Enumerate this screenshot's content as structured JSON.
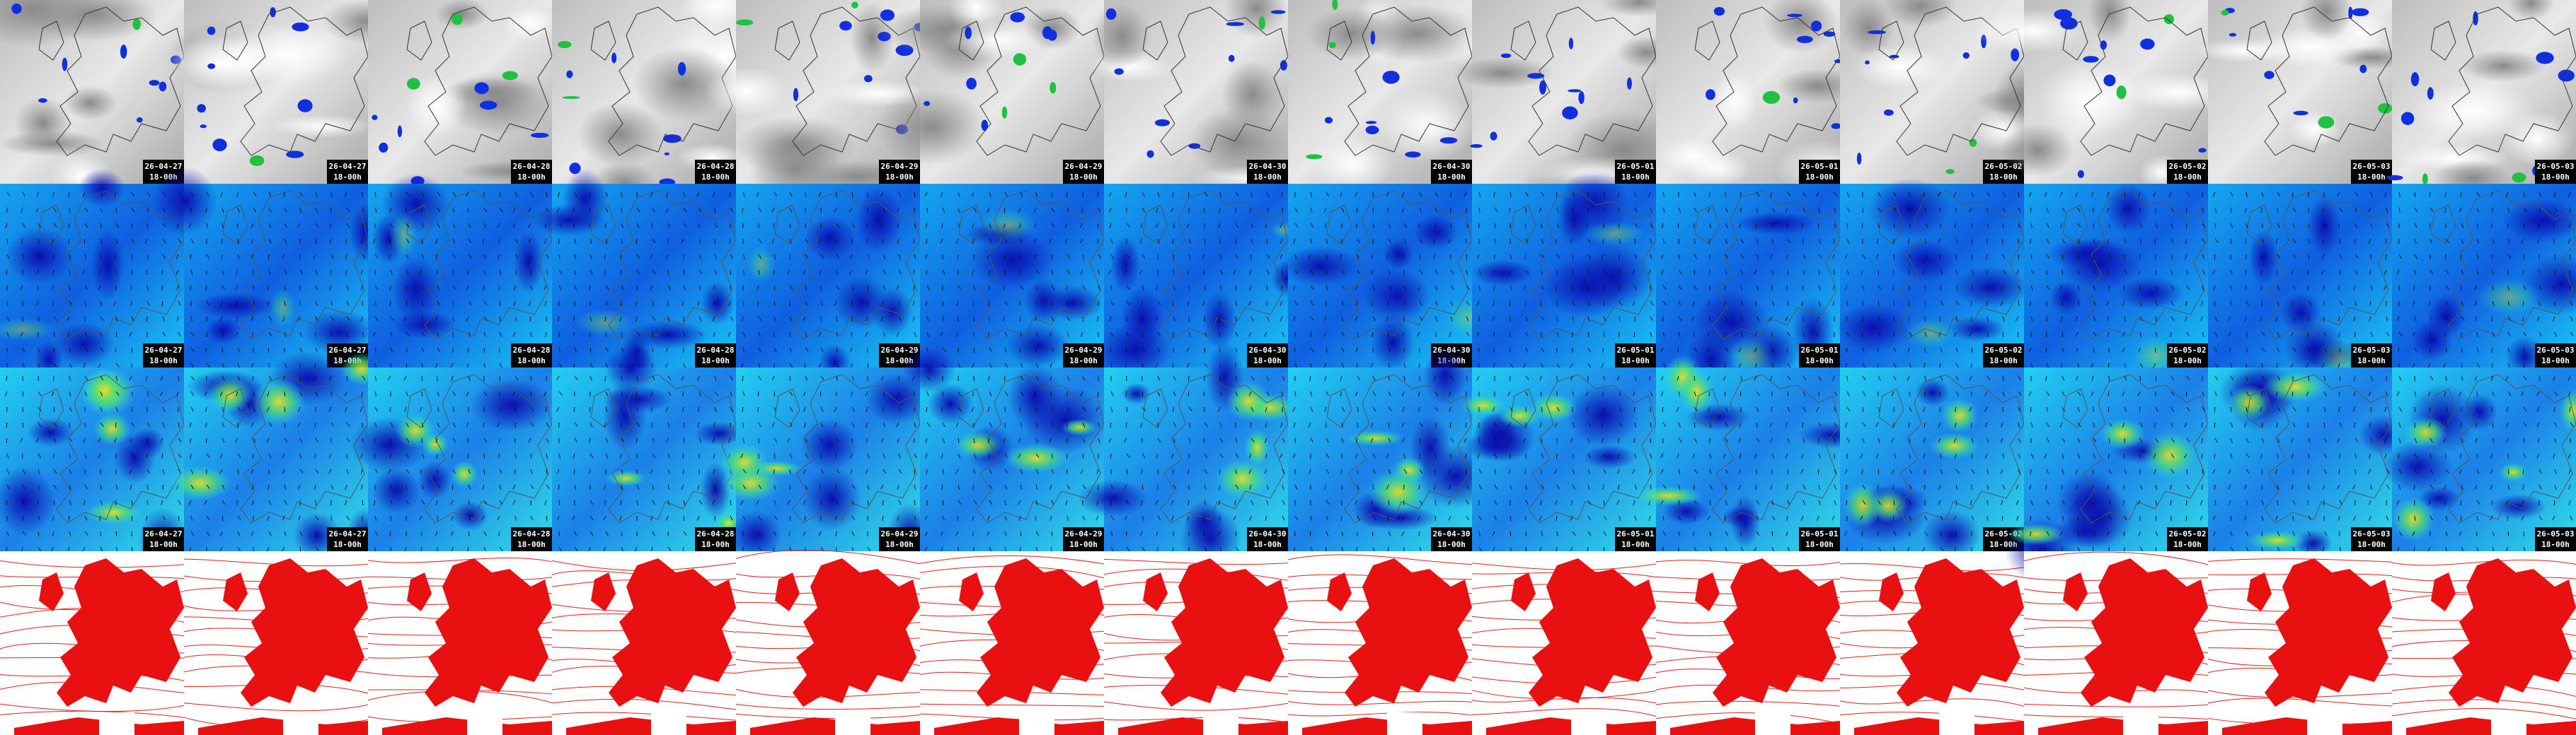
{
  "labels": [
    {
      "date": "26-04-27",
      "time": "18-00h"
    },
    {
      "date": "26-04-27",
      "time": "18-00h"
    },
    {
      "date": "26-04-28",
      "time": "18-00h"
    },
    {
      "date": "26-04-28",
      "time": "18-00h"
    },
    {
      "date": "26-04-29",
      "time": "18-00h"
    },
    {
      "date": "26-04-29",
      "time": "18-00h"
    },
    {
      "date": "26-04-30",
      "time": "18-00h"
    },
    {
      "date": "26-04-30",
      "time": "18-00h"
    },
    {
      "date": "26-05-01",
      "time": "18-00h"
    },
    {
      "date": "26-05-01",
      "time": "18-00h"
    },
    {
      "date": "26-05-02",
      "time": "18-00h"
    },
    {
      "date": "26-05-02",
      "time": "18-00h"
    },
    {
      "date": "26-05-03",
      "time": "18-00h"
    },
    {
      "date": "26-05-03",
      "time": "18-00h"
    }
  ]
}
